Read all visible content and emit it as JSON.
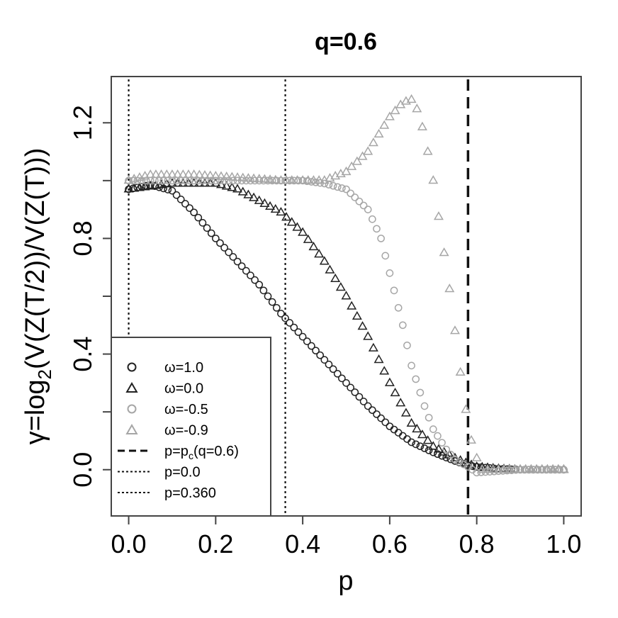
{
  "chart_data": {
    "type": "scatter",
    "title": "q=0.6",
    "xlabel": "p",
    "ylabel_parts": [
      "γ=log",
      "2",
      "(V(Z(T/2))/V(Z(T)))"
    ],
    "xlim": [
      -0.04,
      1.04
    ],
    "ylim": [
      -0.16,
      1.36
    ],
    "x_ticks": [
      0.0,
      0.2,
      0.4,
      0.6,
      0.8,
      1.0
    ],
    "x_tick_labels": [
      "0.0",
      "0.2",
      "0.4",
      "0.6",
      "0.8",
      "1.0"
    ],
    "y_ticks": [
      0.0,
      0.4,
      0.8,
      1.2
    ],
    "y_tick_labels": [
      "0.0",
      "0.4",
      "0.8",
      "1.2"
    ],
    "y_minor_ticks": [
      0.2,
      0.6,
      1.0
    ],
    "series": [
      {
        "name": "ω=1.0",
        "marker": "circle",
        "color": "#222222",
        "anchors": [
          [
            0.0,
            0.97
          ],
          [
            0.05,
            0.985
          ],
          [
            0.1,
            0.965
          ],
          [
            0.15,
            0.89
          ],
          [
            0.2,
            0.8
          ],
          [
            0.25,
            0.72
          ],
          [
            0.3,
            0.64
          ],
          [
            0.35,
            0.54
          ],
          [
            0.4,
            0.46
          ],
          [
            0.45,
            0.38
          ],
          [
            0.5,
            0.3
          ],
          [
            0.55,
            0.22
          ],
          [
            0.6,
            0.15
          ],
          [
            0.65,
            0.095
          ],
          [
            0.7,
            0.06
          ],
          [
            0.75,
            0.03
          ],
          [
            0.78,
            0.015
          ],
          [
            0.8,
            0.01
          ],
          [
            0.85,
            0.003
          ],
          [
            0.9,
            0.0
          ],
          [
            1.0,
            0.0
          ]
        ]
      },
      {
        "name": "ω=0.0",
        "marker": "triangle",
        "color": "#222222",
        "anchors": [
          [
            0.0,
            0.97
          ],
          [
            0.1,
            0.99
          ],
          [
            0.2,
            0.99
          ],
          [
            0.25,
            0.97
          ],
          [
            0.3,
            0.93
          ],
          [
            0.35,
            0.89
          ],
          [
            0.4,
            0.82
          ],
          [
            0.45,
            0.72
          ],
          [
            0.5,
            0.6
          ],
          [
            0.55,
            0.46
          ],
          [
            0.6,
            0.3
          ],
          [
            0.65,
            0.16
          ],
          [
            0.7,
            0.08
          ],
          [
            0.75,
            0.04
          ],
          [
            0.78,
            0.02
          ],
          [
            0.8,
            0.01
          ],
          [
            0.85,
            0.003
          ],
          [
            0.9,
            0.0
          ],
          [
            1.0,
            0.0
          ]
        ]
      },
      {
        "name": "ω=-0.5",
        "marker": "circle",
        "color": "#a6a6a6",
        "anchors": [
          [
            0.0,
            1.0
          ],
          [
            0.1,
            1.0
          ],
          [
            0.2,
            1.0
          ],
          [
            0.3,
            1.0
          ],
          [
            0.4,
            1.0
          ],
          [
            0.45,
            0.99
          ],
          [
            0.5,
            0.97
          ],
          [
            0.55,
            0.9
          ],
          [
            0.58,
            0.8
          ],
          [
            0.6,
            0.68
          ],
          [
            0.63,
            0.5
          ],
          [
            0.65,
            0.36
          ],
          [
            0.68,
            0.22
          ],
          [
            0.7,
            0.14
          ],
          [
            0.73,
            0.07
          ],
          [
            0.75,
            0.035
          ],
          [
            0.78,
            0.01
          ],
          [
            0.8,
            -0.01
          ],
          [
            0.85,
            -0.005
          ],
          [
            0.9,
            0.0
          ],
          [
            1.0,
            0.0
          ]
        ]
      },
      {
        "name": "ω=-0.9",
        "marker": "triangle",
        "color": "#a6a6a6",
        "anchors": [
          [
            0.0,
            1.0
          ],
          [
            0.05,
            1.02
          ],
          [
            0.15,
            1.02
          ],
          [
            0.25,
            1.01
          ],
          [
            0.35,
            1.0
          ],
          [
            0.45,
            1.0
          ],
          [
            0.5,
            1.03
          ],
          [
            0.55,
            1.1
          ],
          [
            0.6,
            1.22
          ],
          [
            0.63,
            1.27
          ],
          [
            0.65,
            1.28
          ],
          [
            0.66,
            1.26
          ],
          [
            0.68,
            1.16
          ],
          [
            0.7,
            1.0
          ],
          [
            0.72,
            0.8
          ],
          [
            0.74,
            0.6
          ],
          [
            0.75,
            0.48
          ],
          [
            0.77,
            0.25
          ],
          [
            0.79,
            0.08
          ],
          [
            0.81,
            0.0
          ],
          [
            0.85,
            0.0
          ],
          [
            1.0,
            0.0
          ]
        ]
      }
    ],
    "vlines": [
      {
        "name": "p=p_c(q=0.6)",
        "x": 0.78,
        "style": "dashed",
        "color": "#111111"
      },
      {
        "name": "p=0.0",
        "x": 0.0,
        "style": "dotted",
        "color": "#111111"
      },
      {
        "name": "p=0.360",
        "x": 0.36,
        "style": "dotted",
        "color": "#111111"
      }
    ],
    "legend": {
      "placement": "bottom-left",
      "entries": [
        {
          "label": "ω=1.0",
          "symbol": "circle",
          "color": "#222222"
        },
        {
          "label": "ω=0.0",
          "symbol": "triangle",
          "color": "#222222"
        },
        {
          "label": "ω=-0.5",
          "symbol": "circle",
          "color": "#a6a6a6"
        },
        {
          "label": "ω=-0.9",
          "symbol": "triangle",
          "color": "#a6a6a6"
        },
        {
          "label_prefix": "p=p",
          "label_sub": "c",
          "label_suffix": "(q=0.6)",
          "label": "p=pc(q=0.6)",
          "symbol": "dashed",
          "color": "#111111"
        },
        {
          "label": "p=0.0",
          "symbol": "dotted",
          "color": "#111111"
        },
        {
          "label": "p=0.360",
          "symbol": "dotted",
          "color": "#111111"
        }
      ]
    }
  }
}
